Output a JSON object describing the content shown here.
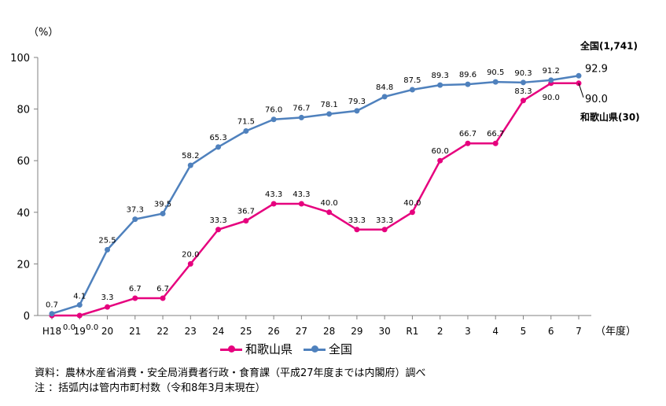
{
  "chart_data": {
    "type": "line",
    "unit_label": "（%）",
    "x_unit_label": "（年度）",
    "categories": [
      "H18",
      "19",
      "20",
      "21",
      "22",
      "23",
      "24",
      "25",
      "26",
      "27",
      "28",
      "29",
      "30",
      "R1",
      "2",
      "3",
      "4",
      "5",
      "6",
      "7"
    ],
    "y_ticks": [
      "0",
      "20",
      "40",
      "60",
      "80",
      "100"
    ],
    "ylim": [
      0,
      100
    ],
    "series": [
      {
        "name": "和歌山県",
        "color": "#E6007E",
        "values": [
          0.0,
          0.0,
          3.3,
          6.7,
          6.7,
          20.0,
          33.3,
          36.7,
          43.3,
          43.3,
          40.0,
          33.3,
          33.3,
          40.0,
          60.0,
          66.7,
          66.7,
          83.3,
          90.0,
          90.0
        ],
        "labels": [
          "0.0",
          "0.0",
          "3.3",
          "6.7",
          "6.7",
          "20.0",
          "33.3",
          "36.7",
          "43.3",
          "43.3",
          "40.0",
          "33.3",
          "33.3",
          "40.0",
          "60.0",
          "66.7",
          "66.7",
          "83.3",
          "90.0",
          ""
        ],
        "end_label": "90.0",
        "end_name": "和歌山県(30)"
      },
      {
        "name": "全国",
        "color": "#4F81BD",
        "values": [
          0.7,
          4.1,
          25.5,
          37.3,
          39.5,
          58.2,
          65.3,
          71.5,
          76.0,
          76.7,
          78.1,
          79.3,
          84.8,
          87.5,
          89.3,
          89.6,
          90.5,
          90.3,
          91.2,
          92.9
        ],
        "labels": [
          "0.7",
          "4.1",
          "25.5",
          "37.3",
          "39.5",
          "58.2",
          "65.3",
          "71.5",
          "76.0",
          "76.7",
          "78.1",
          "79.3",
          "84.8",
          "87.5",
          "89.3",
          "89.6",
          "90.5",
          "90.3",
          "91.2",
          ""
        ],
        "end_label": "92.9",
        "end_name": "全国(1,741)"
      }
    ],
    "legend": [
      "和歌山県",
      "全国"
    ],
    "grid": false
  },
  "notes": {
    "source": "資料：農林水産省消費・安全局消費者行政・食育課（平成27年度までは内閣府）調べ",
    "note": "注 ：括弧内は管内市町村数（令和8年3月末現在）"
  }
}
